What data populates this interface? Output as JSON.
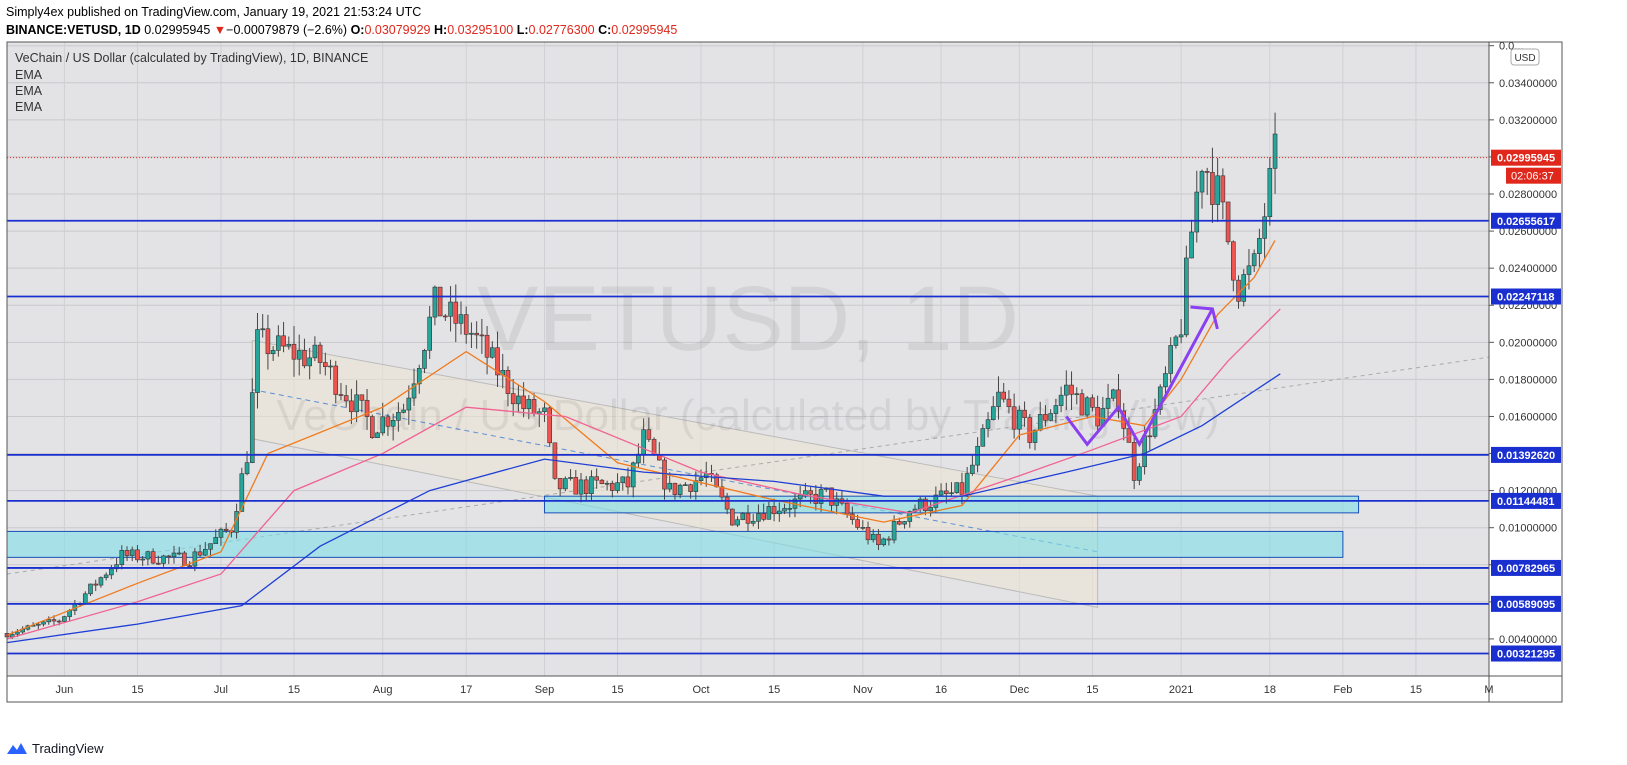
{
  "header": {
    "line1": "Simply4ex published on TradingView.com, January 19, 2021 21:53:24 UTC",
    "symbol": "BINANCE:VETUSD, 1D",
    "last": "0.02995945",
    "arrow": "▼",
    "change": "−0.00079879 (−2.6%)",
    "o_label": "O:",
    "o": "0.03079929",
    "h_label": "H:",
    "h": "0.03295100",
    "l_label": "L:",
    "l": "0.02776300",
    "c_label": "C:",
    "c": "0.02995945"
  },
  "footer": {
    "brand": "TradingView"
  },
  "chart_data": {
    "type": "candlestick",
    "title": "VeChain / US Dollar (calculated by TradingView), 1D, BINANCE",
    "watermark_main": "VETUSD, 1D",
    "watermark_sub": "VeChain / US Dollar (calculated by TradingView)",
    "indicators": [
      "EMA",
      "EMA",
      "EMA"
    ],
    "currency": "USD",
    "ylim": [
      0.002,
      0.0362
    ],
    "y_ticks": [
      0.004,
      0.006,
      0.008,
      0.01,
      0.012,
      0.014,
      0.016,
      0.018,
      0.02,
      0.022,
      0.024,
      0.026,
      0.028,
      0.03,
      0.032,
      0.034,
      0.036
    ],
    "y_tick_labels": [
      "0.00400000",
      "0.00600000",
      "0.00800000",
      "0.01000000",
      "0.01200000",
      "0.01400000",
      "0.01600000",
      "0.01800000",
      "0.02000000",
      "0.02200000",
      "0.02400000",
      "0.02600000",
      "0.02800000",
      "0.03000000",
      "0.03200000",
      "0.03400000",
      "0.0..."
    ],
    "x_range": [
      "2020-05-21",
      "2021-03-01"
    ],
    "x_ticks": [
      {
        "date": "2020-06-01",
        "label": "Jun"
      },
      {
        "date": "2020-06-15",
        "label": "15"
      },
      {
        "date": "2020-07-01",
        "label": "Jul"
      },
      {
        "date": "2020-07-15",
        "label": "15"
      },
      {
        "date": "2020-08-01",
        "label": "Aug"
      },
      {
        "date": "2020-08-17",
        "label": "17"
      },
      {
        "date": "2020-09-01",
        "label": "Sep"
      },
      {
        "date": "2020-09-15",
        "label": "15"
      },
      {
        "date": "2020-10-01",
        "label": "Oct"
      },
      {
        "date": "2020-10-15",
        "label": "15"
      },
      {
        "date": "2020-11-01",
        "label": "Nov"
      },
      {
        "date": "2020-11-16",
        "label": "16"
      },
      {
        "date": "2020-12-01",
        "label": "Dec"
      },
      {
        "date": "2020-12-15",
        "label": "15"
      },
      {
        "date": "2021-01-01",
        "label": "2021"
      },
      {
        "date": "2021-01-18",
        "label": "18"
      },
      {
        "date": "2021-02-01",
        "label": "Feb"
      },
      {
        "date": "2021-02-15",
        "label": "15"
      },
      {
        "date": "2021-03-01",
        "label": "M"
      }
    ],
    "horizontal_levels": [
      0.02655617,
      0.02247118,
      0.0139262,
      0.01144481,
      0.00782965,
      0.00589095,
      0.00321295
    ],
    "level_labels": [
      "0.02655617",
      "0.02247118",
      "0.01392620",
      "0.01144481",
      "0.00782965",
      "0.00589095",
      "0.00321295"
    ],
    "last_price": 0.02995945,
    "last_price_label": "0.02995945",
    "countdown": "02:06:37",
    "support_zones": [
      {
        "from": "2020-05-21",
        "to": "2021-02-01",
        "low": 0.0084,
        "high": 0.0098
      },
      {
        "from": "2020-09-01",
        "to": "2021-02-04",
        "low": 0.0108,
        "high": 0.0117
      }
    ],
    "price_waypoints": [
      [
        "2020-05-21",
        0.0043
      ],
      [
        "2020-05-31",
        0.005
      ],
      [
        "2020-06-07",
        0.007
      ],
      [
        "2020-06-12",
        0.0085
      ],
      [
        "2020-06-25",
        0.0083
      ],
      [
        "2020-07-03",
        0.01
      ],
      [
        "2020-07-06",
        0.014
      ],
      [
        "2020-07-08",
        0.02
      ],
      [
        "2020-07-20",
        0.019
      ],
      [
        "2020-07-30",
        0.0155
      ],
      [
        "2020-08-05",
        0.0165
      ],
      [
        "2020-08-11",
        0.022
      ],
      [
        "2020-08-18",
        0.0205
      ],
      [
        "2020-08-28",
        0.0165
      ],
      [
        "2020-09-01",
        0.016
      ],
      [
        "2020-09-03",
        0.0122
      ],
      [
        "2020-09-17",
        0.0123
      ],
      [
        "2020-09-20",
        0.0148
      ],
      [
        "2020-09-25",
        0.012
      ],
      [
        "2020-10-02",
        0.0128
      ],
      [
        "2020-10-07",
        0.0105
      ],
      [
        "2020-10-25",
        0.0118
      ],
      [
        "2020-11-04",
        0.009
      ],
      [
        "2020-11-10",
        0.011
      ],
      [
        "2020-11-20",
        0.012
      ],
      [
        "2020-11-23",
        0.014
      ],
      [
        "2020-11-27",
        0.017
      ],
      [
        "2020-12-03",
        0.015
      ],
      [
        "2020-12-10",
        0.0175
      ],
      [
        "2020-12-16",
        0.016
      ],
      [
        "2020-12-20",
        0.017
      ],
      [
        "2020-12-23",
        0.013
      ],
      [
        "2020-12-28",
        0.017
      ],
      [
        "2021-01-01",
        0.021
      ],
      [
        "2021-01-03",
        0.026
      ],
      [
        "2021-01-05",
        0.03
      ],
      [
        "2021-01-08",
        0.028
      ],
      [
        "2021-01-12",
        0.023
      ],
      [
        "2021-01-15",
        0.024
      ],
      [
        "2021-01-17",
        0.027
      ],
      [
        "2021-01-19",
        0.02996
      ]
    ],
    "ema_fast": [
      [
        "2020-05-21",
        0.0042
      ],
      [
        "2020-06-15",
        0.007
      ],
      [
        "2020-07-01",
        0.0087
      ],
      [
        "2020-07-10",
        0.014
      ],
      [
        "2020-08-01",
        0.0165
      ],
      [
        "2020-08-17",
        0.0195
      ],
      [
        "2020-09-01",
        0.0168
      ],
      [
        "2020-09-15",
        0.0135
      ],
      [
        "2020-10-15",
        0.0115
      ],
      [
        "2020-11-05",
        0.0103
      ],
      [
        "2020-11-20",
        0.0112
      ],
      [
        "2020-12-01",
        0.015
      ],
      [
        "2020-12-15",
        0.016
      ],
      [
        "2020-12-25",
        0.0155
      ],
      [
        "2021-01-01",
        0.018
      ],
      [
        "2021-01-08",
        0.0215
      ],
      [
        "2021-01-15",
        0.0235
      ],
      [
        "2021-01-19",
        0.0255
      ]
    ],
    "ema_mid": [
      [
        "2020-05-21",
        0.004
      ],
      [
        "2020-06-15",
        0.006
      ],
      [
        "2020-07-01",
        0.0075
      ],
      [
        "2020-07-15",
        0.012
      ],
      [
        "2020-08-01",
        0.014
      ],
      [
        "2020-08-17",
        0.0165
      ],
      [
        "2020-09-05",
        0.016
      ],
      [
        "2020-10-01",
        0.013
      ],
      [
        "2020-10-20",
        0.0118
      ],
      [
        "2020-11-10",
        0.0108
      ],
      [
        "2020-12-01",
        0.0128
      ],
      [
        "2020-12-15",
        0.0142
      ],
      [
        "2021-01-01",
        0.016
      ],
      [
        "2021-01-10",
        0.019
      ],
      [
        "2021-01-20",
        0.0218
      ]
    ],
    "ema_slow": [
      [
        "2020-05-21",
        0.0038
      ],
      [
        "2020-06-15",
        0.0048
      ],
      [
        "2020-07-05",
        0.0058
      ],
      [
        "2020-07-20",
        0.009
      ],
      [
        "2020-08-10",
        0.012
      ],
      [
        "2020-09-01",
        0.0137
      ],
      [
        "2020-09-20",
        0.013
      ],
      [
        "2020-10-15",
        0.0125
      ],
      [
        "2020-11-05",
        0.0117
      ],
      [
        "2020-11-20",
        0.0117
      ],
      [
        "2020-12-10",
        0.013
      ],
      [
        "2020-12-25",
        0.014
      ],
      [
        "2021-01-05",
        0.0155
      ],
      [
        "2021-01-20",
        0.0183
      ]
    ]
  }
}
